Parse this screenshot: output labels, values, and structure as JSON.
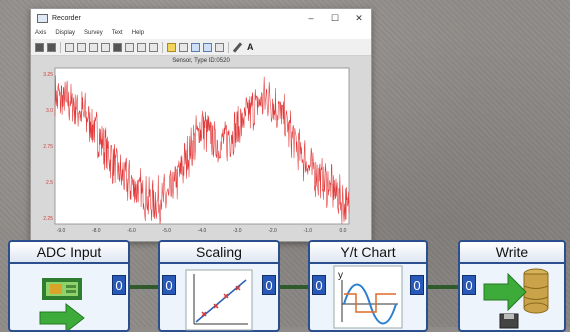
{
  "window": {
    "title": "Recorder",
    "controls": [
      "–",
      "☐",
      "✕"
    ],
    "menu": [
      "Axis",
      "Display",
      "Survey",
      "Text",
      "Help"
    ]
  },
  "plot": {
    "title": "Sensor, Type ID:0520",
    "y_ticks": [
      "3.25",
      "3.0",
      "2.75",
      "2.5",
      "2.25"
    ],
    "x_ticks": [
      "-9.0",
      "-8.0",
      "-6.0",
      "-5.0",
      "-4.0",
      "-3.0",
      "-2.0",
      "-1.0",
      "0.0"
    ],
    "series_color": "#e23a3a"
  },
  "chart_data": {
    "type": "line",
    "title": "Sensor, Type ID:0520",
    "x": [
      -9.0,
      -8.5,
      -8.0,
      -7.5,
      -7.0,
      -6.5,
      -6.0,
      -5.5,
      -5.0,
      -4.5,
      -4.0,
      -3.5,
      -3.0,
      -2.5,
      -2.0,
      -1.5,
      -1.0,
      -0.5,
      0.0
    ],
    "series": [
      {
        "values": [
          3.1,
          3.05,
          2.95,
          2.75,
          2.55,
          2.45,
          2.35,
          2.4,
          2.65,
          2.9,
          2.75,
          2.85,
          3.0,
          3.1,
          2.95,
          2.7,
          2.55,
          2.45,
          2.3
        ]
      }
    ],
    "xlim": [
      -9.0,
      0.0
    ],
    "ylim": [
      2.2,
      3.3
    ]
  },
  "pipeline": [
    {
      "title": "ADC Input",
      "in_port": "",
      "out_port": "0"
    },
    {
      "title": "Scaling",
      "in_port": "0",
      "out_port": "0"
    },
    {
      "title": "Y/t Chart",
      "in_port": "0",
      "out_port": "0"
    },
    {
      "title": "Write",
      "in_port": "0",
      "out_port": ""
    }
  ],
  "colors": {
    "block_border": "#2b4f8e",
    "port": "#2858b8",
    "link": "#2f5a2c",
    "signal": "#e23a3a"
  }
}
